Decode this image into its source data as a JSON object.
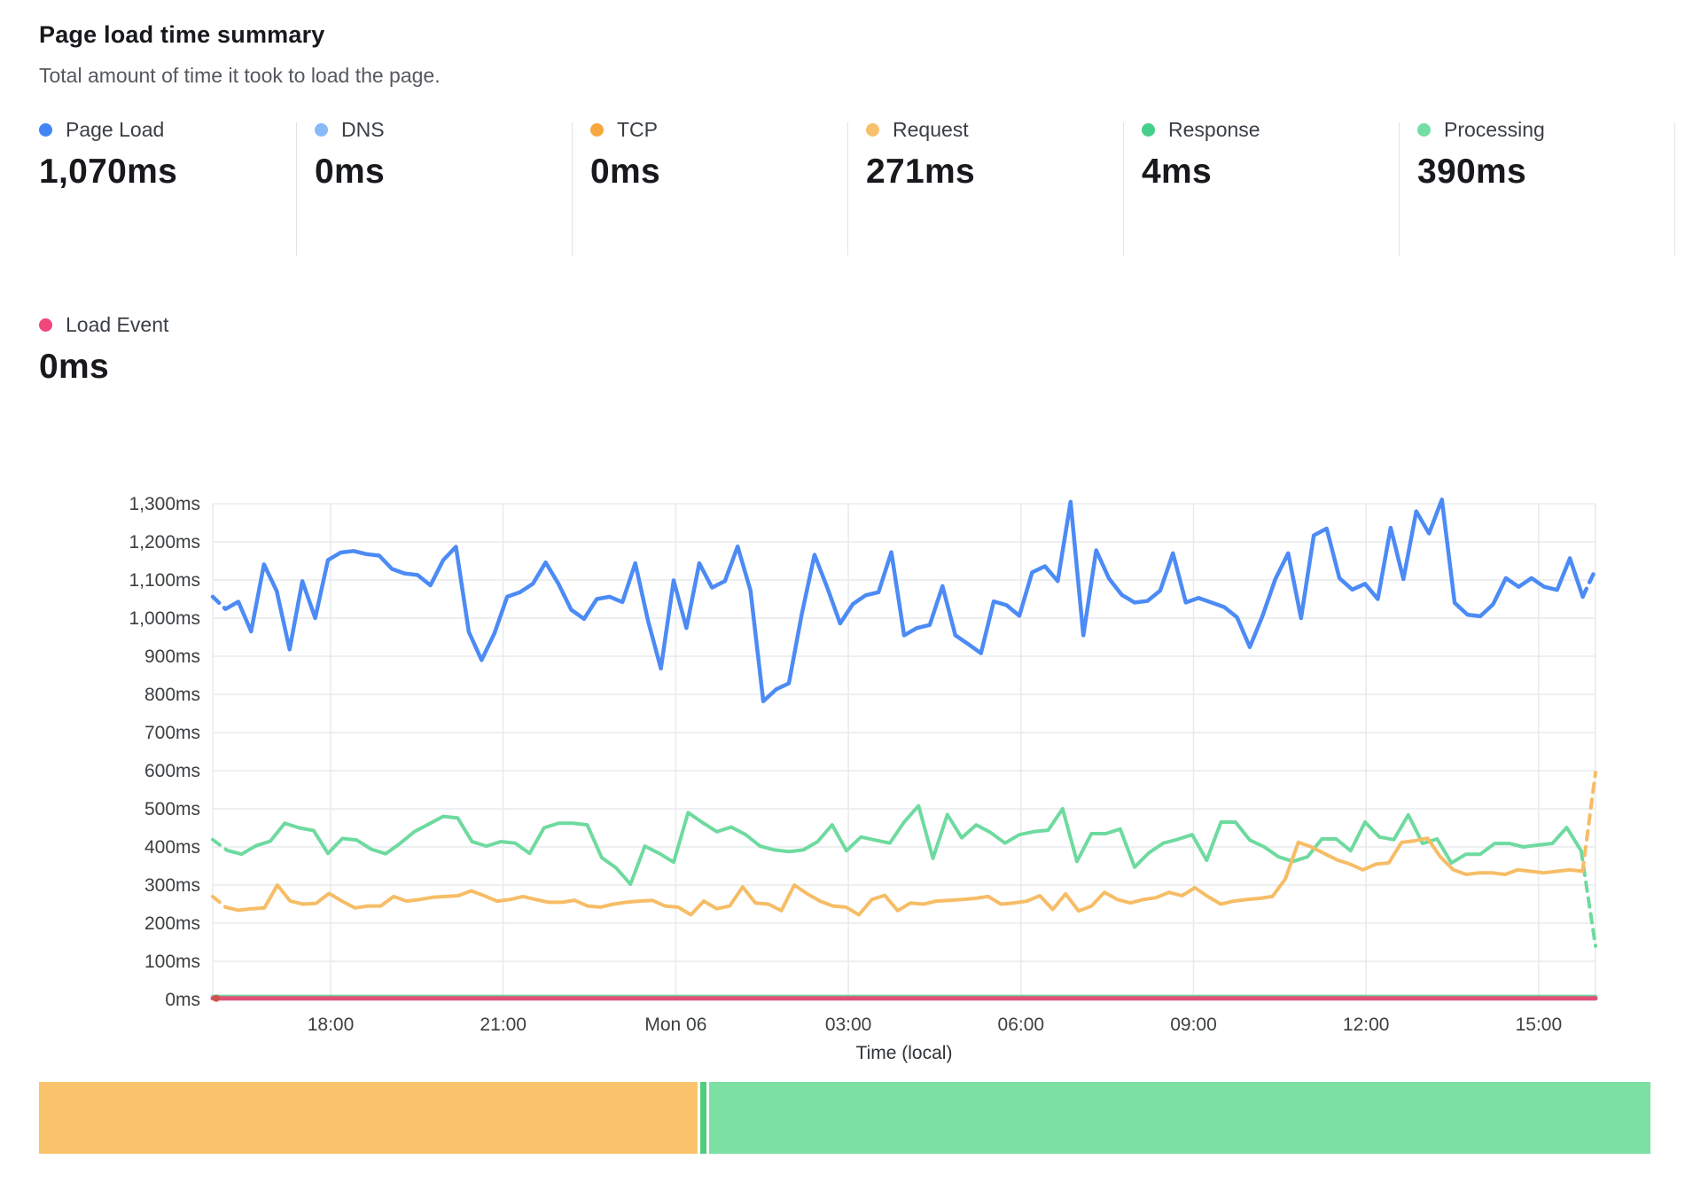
{
  "header": {
    "title": "Page load time summary",
    "subtitle": "Total amount of time it took to load the page."
  },
  "summary": {
    "row1": [
      {
        "id": "page-load",
        "label": "Page Load",
        "value": "1,070ms",
        "color": "#4285f4"
      },
      {
        "id": "dns",
        "label": "DNS",
        "value": "0ms",
        "color": "#8ab9f9"
      },
      {
        "id": "tcp",
        "label": "TCP",
        "value": "0ms",
        "color": "#f7a83d"
      },
      {
        "id": "request",
        "label": "Request",
        "value": "271ms",
        "color": "#f8c06c"
      },
      {
        "id": "response",
        "label": "Response",
        "value": "4ms",
        "color": "#43d08a"
      },
      {
        "id": "processing",
        "label": "Processing",
        "value": "390ms",
        "color": "#74dda4"
      }
    ],
    "row2": [
      {
        "id": "load-event",
        "label": "Load Event",
        "value": "0ms",
        "color": "#f0487c"
      }
    ]
  },
  "chart_data": {
    "type": "line",
    "title": "Page load time summary",
    "xlabel": "Time (local)",
    "x_tick_labels": [
      "18:00",
      "21:00",
      "Mon 06",
      "03:00",
      "06:00",
      "09:00",
      "12:00",
      "15:00"
    ],
    "y_tick_labels": [
      "0ms",
      "100ms",
      "200ms",
      "300ms",
      "400ms",
      "500ms",
      "600ms",
      "700ms",
      "800ms",
      "900ms",
      "1,000ms",
      "1,100ms",
      "1,200ms",
      "1,300ms"
    ],
    "ylim": [
      0,
      1300
    ],
    "grid": true,
    "legend_position": "top-stats",
    "series": [
      {
        "name": "Page Load",
        "color": "#4c8bf5",
        "width": 4.5,
        "dash_ends": true,
        "values": [
          1056,
          1024,
          1043,
          965,
          1141,
          1071,
          918,
          1097,
          1000,
          1152,
          1172,
          1176,
          1168,
          1164,
          1129,
          1117,
          1113,
          1086,
          1152,
          1187,
          964,
          890,
          960,
          1056,
          1068,
          1090,
          1146,
          1090,
          1022,
          998,
          1050,
          1056,
          1042,
          1144,
          993,
          868,
          1099,
          974,
          1144,
          1080,
          1097,
          1188,
          1072,
          782,
          813,
          829,
          1009,
          1166,
          1080,
          986,
          1037,
          1060,
          1068,
          1173,
          955,
          974,
          982,
          1084,
          955,
          932,
          908,
          1044,
          1034,
          1006,
          1120,
          1136,
          1097,
          1305,
          955,
          1178,
          1104,
          1061,
          1041,
          1045,
          1072,
          1170,
          1041,
          1053,
          1041,
          1029,
          1002,
          924,
          1006,
          1103,
          1170,
          1000,
          1217,
          1235,
          1105,
          1075,
          1090,
          1050,
          1237,
          1102,
          1280,
          1222,
          1311,
          1040,
          1009,
          1005,
          1036,
          1105,
          1082,
          1105,
          1082,
          1074,
          1157,
          1056,
          1128
        ]
      },
      {
        "name": "Processing",
        "color": "#6eda9f",
        "width": 4,
        "dash_ends": true,
        "values": [
          419,
          391,
          381,
          403,
          415,
          462,
          450,
          443,
          383,
          422,
          418,
          394,
          382,
          409,
          440,
          460,
          480,
          476,
          414,
          402,
          414,
          410,
          383,
          450,
          462,
          462,
          458,
          372,
          345,
          302,
          402,
          383,
          360,
          490,
          464,
          440,
          452,
          432,
          402,
          392,
          388,
          392,
          414,
          458,
          390,
          426,
          418,
          410,
          465,
          508,
          370,
          485,
          424,
          458,
          438,
          410,
          432,
          440,
          444,
          500,
          362,
          435,
          435,
          447,
          347,
          385,
          410,
          420,
          432,
          365,
          465,
          465,
          418,
          400,
          374,
          362,
          374,
          421,
          421,
          390,
          465,
          426,
          419,
          484,
          409,
          421,
          358,
          381,
          381,
          409,
          409,
          400,
          405,
          409,
          451,
          390,
          140
        ]
      },
      {
        "name": "Request",
        "color": "#f6bd66",
        "width": 4,
        "dash_ends": true,
        "values": [
          270,
          242,
          234,
          238,
          240,
          300,
          258,
          250,
          252,
          278,
          258,
          240,
          245,
          245,
          270,
          258,
          262,
          268,
          270,
          272,
          285,
          272,
          258,
          262,
          270,
          262,
          255,
          255,
          260,
          245,
          242,
          250,
          255,
          258,
          260,
          245,
          242,
          222,
          258,
          238,
          245,
          295,
          253,
          250,
          233,
          300,
          277,
          258,
          245,
          242,
          222,
          262,
          273,
          233,
          253,
          250,
          258,
          260,
          262,
          265,
          270,
          250,
          253,
          258,
          272,
          236,
          277,
          232,
          245,
          281,
          262,
          253,
          262,
          267,
          281,
          272,
          293,
          270,
          250,
          258,
          262,
          265,
          270,
          316,
          412,
          400,
          383,
          366,
          355,
          340,
          355,
          358,
          412,
          416,
          423,
          374,
          340,
          328,
          332,
          332,
          328,
          340,
          336,
          332,
          336,
          340,
          336,
          595
        ]
      },
      {
        "name": "Response",
        "color": "#6eda9f",
        "width": 4,
        "dash_ends": false,
        "values": [
          8,
          8
        ]
      },
      {
        "name": "Load Event",
        "color": "#e05078",
        "width": 5,
        "dash_ends": false,
        "values": [
          3,
          3
        ]
      }
    ]
  },
  "timeline_bar": {
    "segments": [
      {
        "name": "request-portion",
        "color": "#f9c36c",
        "fraction": 0.41
      },
      {
        "name": "divider-sliver",
        "color": "#4fcd7d",
        "fraction": 0.004
      },
      {
        "name": "processing-portion",
        "color": "#7ce0a4",
        "fraction": 0.586
      }
    ]
  }
}
